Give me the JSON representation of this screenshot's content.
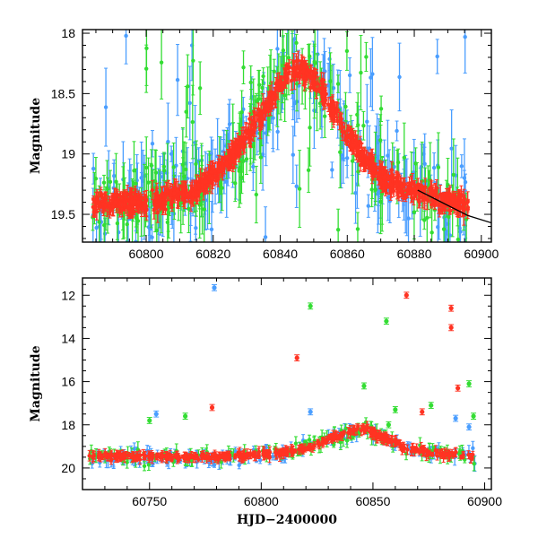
{
  "chart_data": [
    {
      "type": "scatter",
      "xlabel": "",
      "ylabel": "Magnitude",
      "xlim": [
        60781,
        60903
      ],
      "ylim": [
        19.73,
        17.97
      ],
      "y_inverted": true,
      "xticks": [
        60800,
        60820,
        60840,
        60860,
        60880,
        60900
      ],
      "yticks": [
        18,
        18.5,
        19,
        19.5
      ],
      "model_curve": {
        "x": [
          60881,
          60886,
          60891,
          60896,
          60903
        ],
        "y": [
          19.3,
          19.37,
          19.44,
          19.51,
          19.57
        ]
      },
      "series": [
        {
          "name": "",
          "color": "#4a9eff",
          "points": []
        },
        {
          "name": "",
          "color": "#33dd33",
          "points": []
        },
        {
          "name": "",
          "color": "#ff3322",
          "points": []
        }
      ],
      "trend": {
        "x": [
          60781,
          60800,
          60815,
          60825,
          60835,
          60842,
          60846,
          60852,
          60860,
          60868,
          60876,
          60885,
          60895
        ],
        "y": [
          19.42,
          19.4,
          19.3,
          19.05,
          18.65,
          18.32,
          18.28,
          18.45,
          18.85,
          19.15,
          19.28,
          19.35,
          19.42
        ]
      }
    },
    {
      "type": "scatter",
      "xlabel": "HJD−2400000",
      "ylabel": "Magnitude",
      "xlim": [
        60720,
        60903
      ],
      "ylim": [
        21.0,
        11.2
      ],
      "y_inverted": true,
      "xticks": [
        60750,
        60800,
        60850,
        60900
      ],
      "yticks": [
        12,
        14,
        16,
        18,
        20
      ],
      "series": [
        {
          "name": "",
          "color": "#4a9eff",
          "points": [
            [
              60779,
              11.65
            ],
            [
              60753,
              17.5
            ],
            [
              60822,
              17.4
            ],
            [
              60887,
              17.7
            ],
            [
              60893,
              18.1
            ]
          ]
        },
        {
          "name": "",
          "color": "#33dd33",
          "points": [
            [
              60822,
              12.5
            ],
            [
              60856,
              13.2
            ],
            [
              60846,
              16.2
            ],
            [
              60893,
              16.1
            ],
            [
              60750,
              17.8
            ],
            [
              60766,
              17.6
            ],
            [
              60860,
              17.3
            ],
            [
              60876,
              17.1
            ],
            [
              60895,
              17.6
            ],
            [
              60857,
              18.0
            ]
          ]
        },
        {
          "name": "",
          "color": "#ff3322",
          "points": [
            [
              60865,
              12.0
            ],
            [
              60885,
              12.6
            ],
            [
              60885,
              13.5
            ],
            [
              60816,
              14.9
            ],
            [
              60888,
              16.3
            ],
            [
              60778,
              17.2
            ],
            [
              60872,
              17.4
            ]
          ]
        }
      ],
      "trend": {
        "x": [
          60725,
          60760,
          60790,
          60810,
          60825,
          60835,
          60842,
          60847,
          60855,
          60865,
          60880,
          60897
        ],
        "y": [
          19.45,
          19.5,
          19.45,
          19.3,
          18.9,
          18.5,
          18.25,
          18.2,
          18.6,
          19.1,
          19.35,
          19.45
        ]
      }
    }
  ]
}
